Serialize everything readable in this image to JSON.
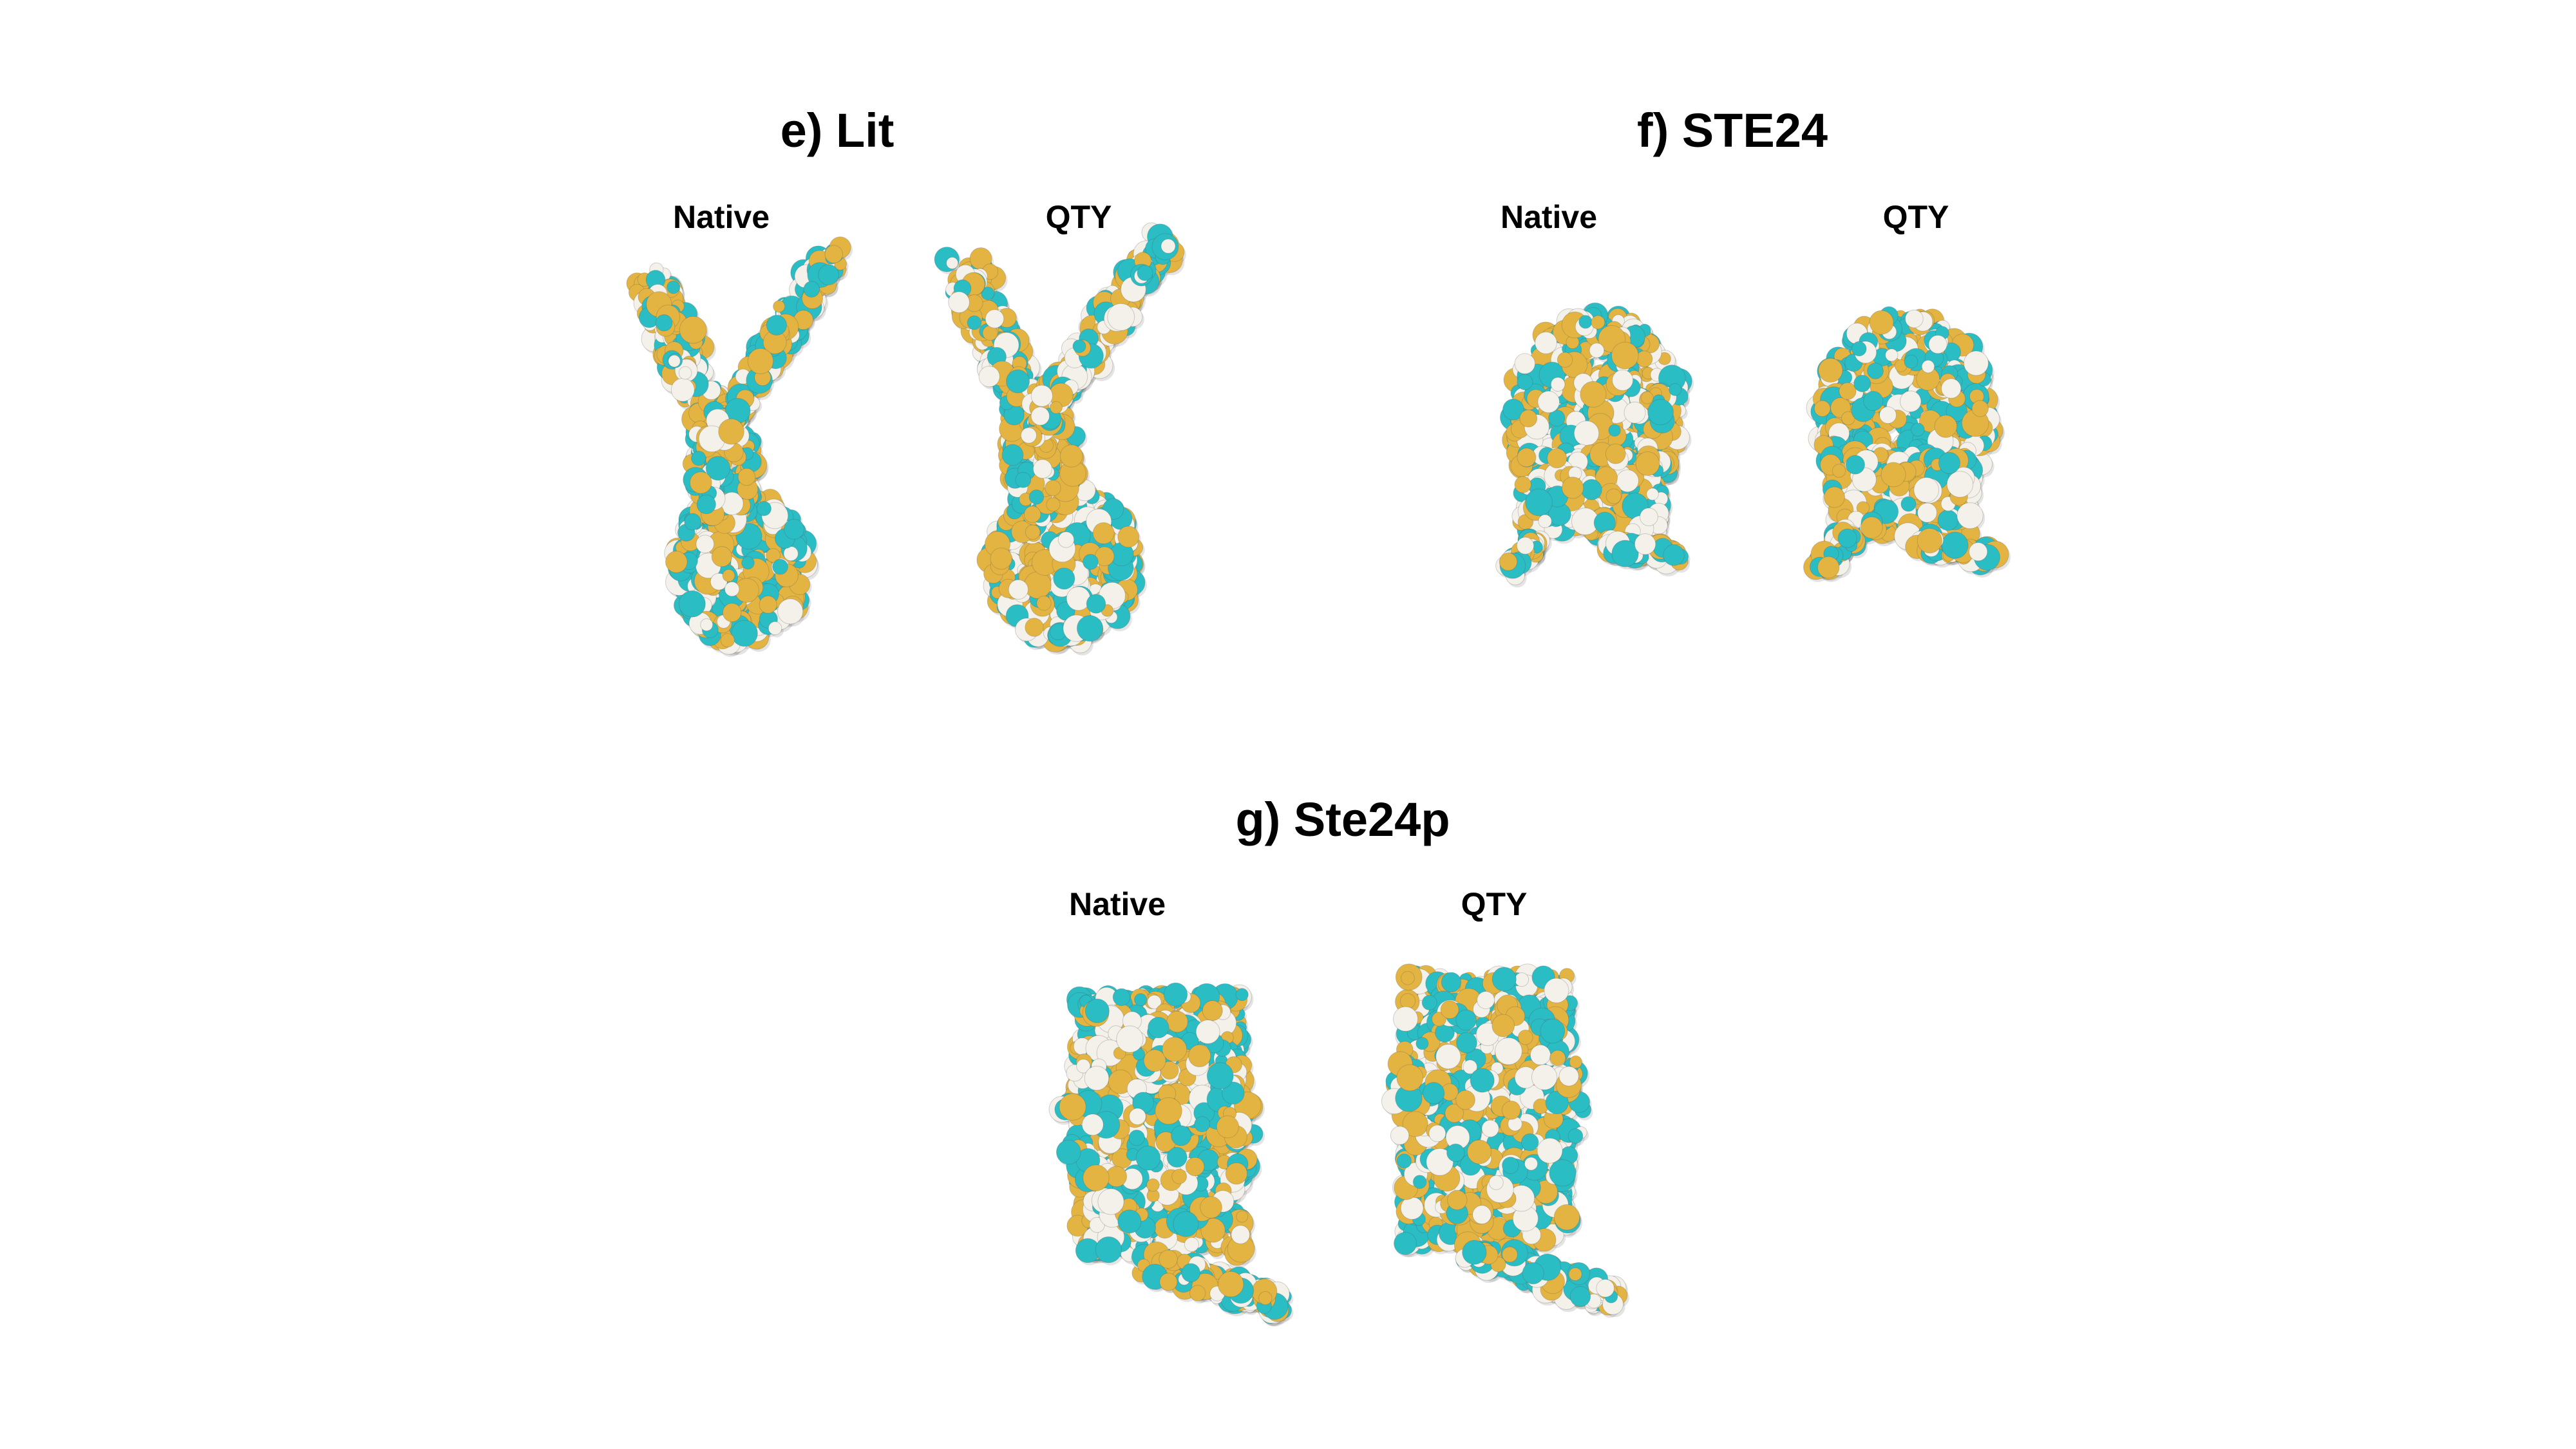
{
  "panels": [
    {
      "id": "e",
      "title": "e)  Lit",
      "left_label": "Native",
      "right_label": "QTY"
    },
    {
      "id": "f",
      "title": "f)  STE24",
      "left_label": "Native",
      "right_label": "QTY"
    },
    {
      "id": "g",
      "title": "g)  Ste24p",
      "left_label": "Native",
      "right_label": "QTY"
    }
  ],
  "colors": {
    "hydrophobic": "#e3b441",
    "hydrophilic": "#2bbdc4",
    "neutral": "#f4f1ea",
    "background": "#ffffff"
  }
}
